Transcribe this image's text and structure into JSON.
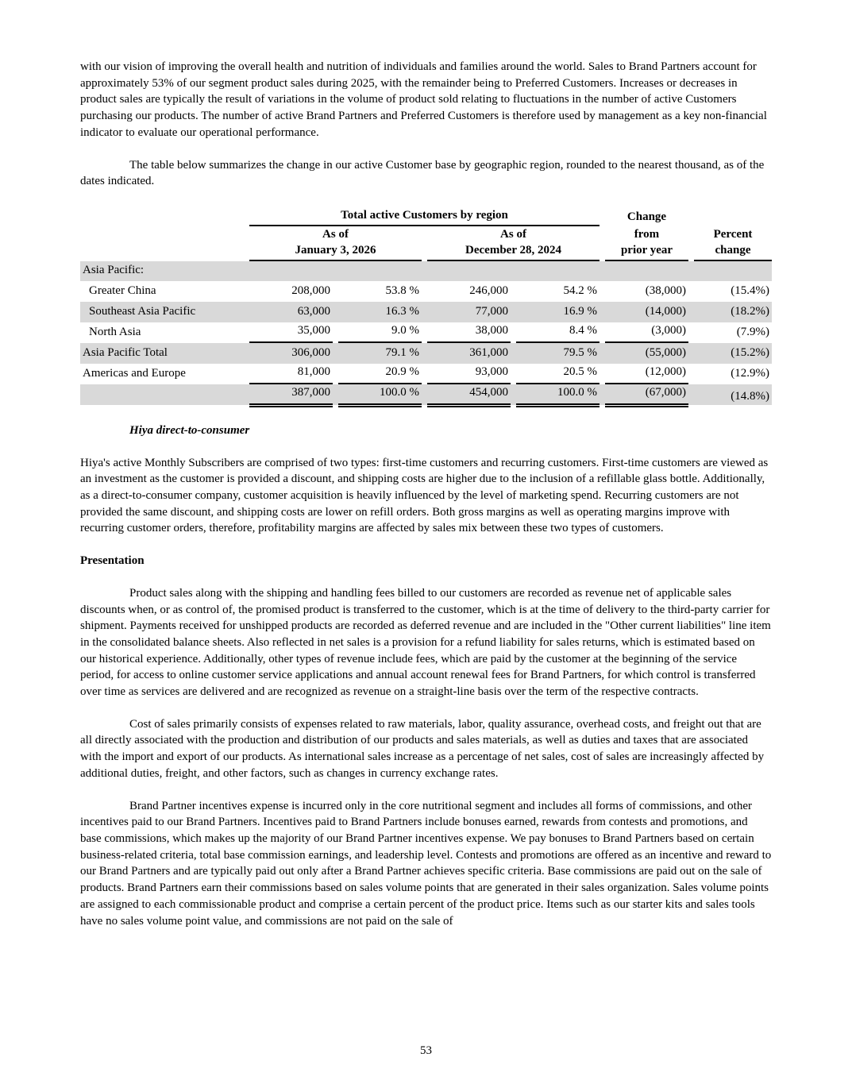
{
  "page": {
    "number": "53"
  },
  "colors": {
    "row_shading": "#d9d9d9",
    "text": "#000000"
  },
  "paragraphs": {
    "intro": "with our vision of improving the overall health and nutrition of individuals and families around the world. Sales to Brand Partners account for approximately 53% of our segment product sales during 2025, with the remainder being to Preferred Customers. Increases or decreases in product sales are typically the result of variations in the volume of product sold relating to fluctuations in the number of active Customers purchasing our products. The number of active Brand Partners and Preferred Customers is therefore used by management as a key non-financial indicator to evaluate our operational performance.",
    "table_intro": "The table below summarizes the change in our active Customer base by geographic region, rounded to the nearest thousand, as of the dates indicated.",
    "hiya_heading": "Hiya direct-to-consumer",
    "hiya_body": "Hiya's active Monthly Subscribers are comprised of two types: first-time customers and recurring customers. First-time customers are viewed as an investment as the customer is provided a discount, and shipping costs are higher due to the inclusion of a refillable glass bottle. Additionally, as a direct-to-consumer company, customer acquisition is heavily influenced by the level of marketing spend. Recurring customers are not provided the same discount, and shipping costs are lower on refill orders. Both gross margins as well as operating margins improve with recurring customer orders, therefore, profitability margins are affected by sales mix between these two types of customers.",
    "presentation_heading": "Presentation",
    "presentation_body": "Product sales along with the shipping and handling fees billed to our customers are recorded as revenue net of applicable sales discounts when, or as control of, the promised product is transferred to the customer, which is at the time of delivery to the third-party carrier for shipment. Payments received for unshipped products are recorded as deferred revenue and are included in the \"Other current liabilities\" line item in the consolidated balance sheets. Also reflected in net sales is a provision for a refund liability for sales returns, which is estimated based on our historical experience. Additionally, other types of revenue include fees, which are paid by the customer at the beginning of the service period, for access to online customer service applications and annual account renewal fees for Brand Partners, for which control is transferred over time as services are delivered and are recognized as revenue on a straight-line basis over the term of the respective contracts.",
    "cost_of_sales": "Cost of sales primarily consists of expenses related to raw materials, labor, quality assurance, overhead costs, and freight out that are all directly associated with the production and distribution of our products and sales materials, as well as duties and taxes that are associated with the import and export of our products. As international sales increase as a percentage of net sales, cost of sales are increasingly affected by additional duties, freight, and other factors, such as changes in currency exchange rates.",
    "brand_partner": "Brand Partner incentives expense is incurred only in the core nutritional segment and includes all forms of commissions, and other incentives paid to our Brand Partners. Incentives paid to Brand Partners include bonuses earned, rewards from contests and promotions, and base commissions, which makes up the majority of our Brand Partner incentives expense. We pay bonuses to Brand Partners based on certain business-related criteria, total base commission earnings, and leadership level. Contests and promotions are offered as an incentive and reward to our Brand Partners and are typically paid out only after a Brand Partner achieves specific criteria. Base commissions are paid out on the sale of products. Brand Partners earn their commissions based on sales volume points that are generated in their sales organization. Sales volume points are assigned to each commissionable product and comprise a certain percent of the product price. Items such as our starter kits and sales tools have no sales volume point value, and commissions are not paid on the sale of"
  },
  "table": {
    "title": "Total active Customers by region",
    "col_group_1": "As of\nJanuary 3, 2026",
    "col_group_2": "As of\nDecember 28, 2024",
    "change_top": "Change",
    "change_bottom": "from\nprior year",
    "percent_change": "Percent\nchange",
    "section_label": "Asia Pacific:",
    "rows": [
      {
        "label": "Greater China",
        "v1": "208,000",
        "p1": "53.8 %",
        "v2": "246,000",
        "p2": "54.2 %",
        "change": "(38,000)",
        "pct": "(15.4%)"
      },
      {
        "label": "Southeast Asia Pacific",
        "v1": "63,000",
        "p1": "16.3 %",
        "v2": "77,000",
        "p2": "16.9 %",
        "change": "(14,000)",
        "pct": "(18.2%)"
      },
      {
        "label": "North Asia",
        "v1": "35,000",
        "p1": "9.0 %",
        "v2": "38,000",
        "p2": "8.4 %",
        "change": "(3,000)",
        "pct": "(7.9%)"
      },
      {
        "label": "Asia Pacific Total",
        "v1": "306,000",
        "p1": "79.1 %",
        "v2": "361,000",
        "p2": "79.5 %",
        "change": "(55,000)",
        "pct": "(15.2%)"
      },
      {
        "label": "Americas and Europe",
        "v1": "81,000",
        "p1": "20.9 %",
        "v2": "93,000",
        "p2": "20.5 %",
        "change": "(12,000)",
        "pct": "(12.9%)"
      },
      {
        "label": "",
        "v1": "387,000",
        "p1": "100.0 %",
        "v2": "454,000",
        "p2": "100.0 %",
        "change": "(67,000)",
        "pct": "(14.8%)"
      }
    ]
  }
}
